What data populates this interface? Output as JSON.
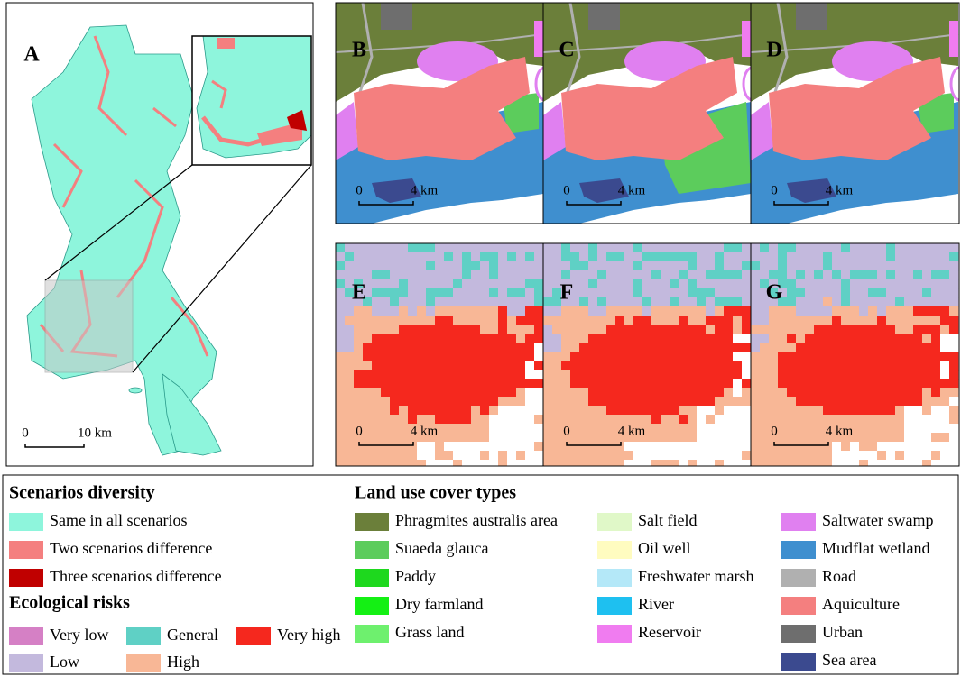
{
  "panels": [
    {
      "label": "A",
      "scale": [
        "0",
        "10 km"
      ]
    },
    {
      "label": "B",
      "scale": [
        "0",
        "4 km"
      ]
    },
    {
      "label": "C",
      "scale": [
        "0",
        "4 km"
      ]
    },
    {
      "label": "D",
      "scale": [
        "0",
        "4 km"
      ]
    },
    {
      "label": "E",
      "scale": [
        "0",
        "4 km"
      ]
    },
    {
      "label": "F",
      "scale": [
        "0",
        "4 km"
      ]
    },
    {
      "label": "G",
      "scale": [
        "0",
        "4 km"
      ]
    }
  ],
  "legend": {
    "scenarios": {
      "title": "Scenarios diversity",
      "items": [
        {
          "label": "Same in all scenarios",
          "color": "#8ef5dc"
        },
        {
          "label": "Two scenarios difference",
          "color": "#f47f7f"
        },
        {
          "label": "Three scenarios difference",
          "color": "#c00000"
        }
      ]
    },
    "risks": {
      "title": "Ecological risks",
      "items": [
        {
          "label": "Very low",
          "color": "#d580c5"
        },
        {
          "label": "General",
          "color": "#5fd0c5"
        },
        {
          "label": "Very high",
          "color": "#f5281e"
        },
        {
          "label": "Low",
          "color": "#c3b9dd"
        },
        {
          "label": "High",
          "color": "#f8b796"
        }
      ]
    },
    "land_use": {
      "title": "Land use cover types",
      "items": [
        {
          "label": "Phragmites australis area",
          "color": "#6b7f3a"
        },
        {
          "label": "Suaeda glauca",
          "color": "#5ccc5c"
        },
        {
          "label": "Paddy",
          "color": "#1ed81e"
        },
        {
          "label": "Dry farmland",
          "color": "#14f014"
        },
        {
          "label": "Grass land",
          "color": "#6ef06e"
        },
        {
          "label": "Salt field",
          "color": "#e0f8c8"
        },
        {
          "label": "Oil well",
          "color": "#fffcc0"
        },
        {
          "label": "Freshwater marsh",
          "color": "#b4e8f8"
        },
        {
          "label": "River",
          "color": "#1ec0f0"
        },
        {
          "label": "Reservoir",
          "color": "#f07cf0"
        },
        {
          "label": "Saltwater swamp",
          "color": "#e080f0"
        },
        {
          "label": "Mudflat wetland",
          "color": "#3f8fcf"
        },
        {
          "label": "Road",
          "color": "#b0b0b0"
        },
        {
          "label": "Aquiculture",
          "color": "#f47f7f"
        },
        {
          "label": "Urban",
          "color": "#6e6e6e"
        },
        {
          "label": "Sea area",
          "color": "#3b4a8f"
        }
      ]
    }
  }
}
